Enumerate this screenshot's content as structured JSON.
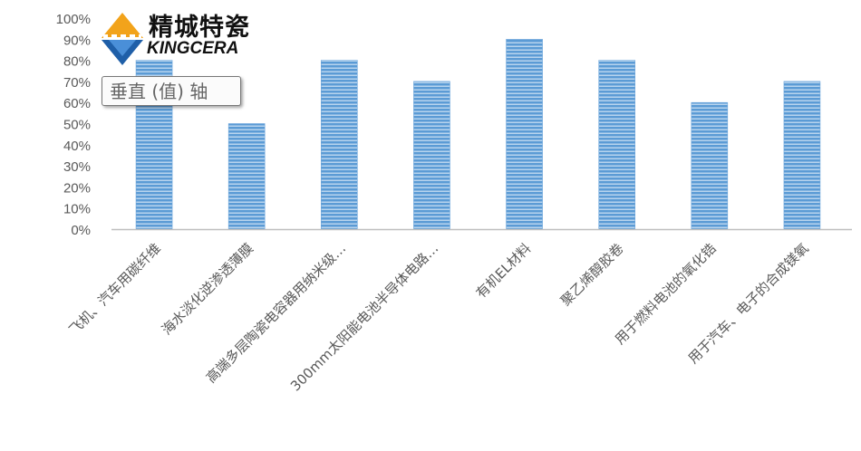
{
  "logo": {
    "name_cn": "精城特瓷",
    "name_en": "KINGCERA"
  },
  "tooltip": {
    "text": "垂直 (值) 轴"
  },
  "colors": {
    "bar": "#5b9bd5",
    "bar_stripe": "#dbe9f7",
    "axis": "#bfbfbf",
    "text": "#595959"
  },
  "chart_data": {
    "type": "bar",
    "categories": [
      "飞机、汽车用碳纤维",
      "海水淡化逆渗透薄膜",
      "高端多层陶瓷电容器用纳米级…",
      "300mm太阳能电池半导体电路…",
      "有机EL材料",
      "聚乙烯醇胶卷",
      "用于燃料电池的氧化锆",
      "用于汽车、电子的合成镁氧"
    ],
    "values": [
      80,
      50,
      80,
      70,
      90,
      80,
      60,
      70
    ],
    "ylim": [
      0,
      100
    ],
    "yticks": [
      "0%",
      "10%",
      "20%",
      "30%",
      "40%",
      "50%",
      "60%",
      "70%",
      "80%",
      "90%",
      "100%"
    ],
    "grid": false,
    "title": "",
    "xlabel": "",
    "ylabel": ""
  }
}
